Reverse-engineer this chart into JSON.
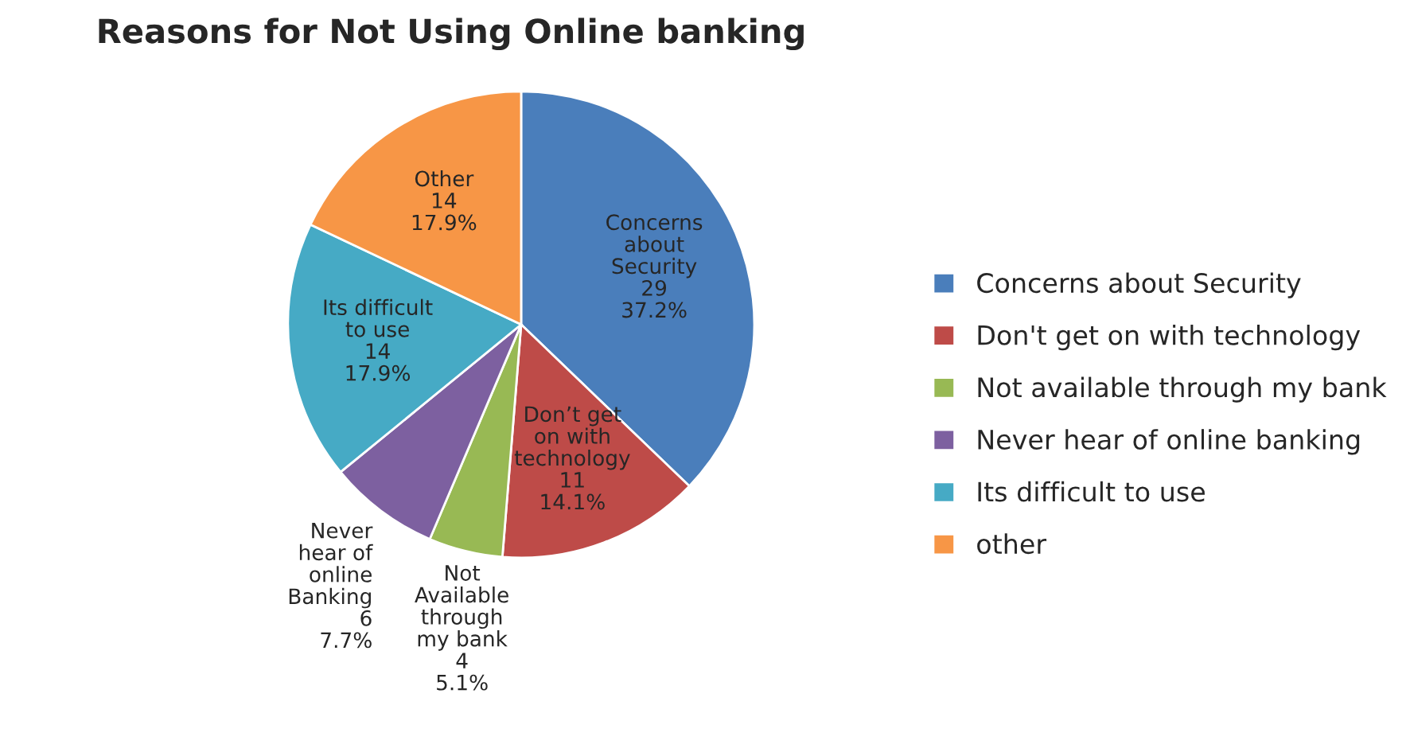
{
  "chart_data": {
    "type": "pie",
    "title": "Reasons for Not Using Online banking",
    "categories": [
      "Concerns about Security",
      "Don't get on with technology",
      "Not available through my bank",
      "Never hear of online banking",
      "Its difficult to use",
      "other"
    ],
    "values": [
      29,
      11,
      4,
      6,
      14,
      14
    ],
    "colors": [
      "#4a7ebb",
      "#be4b48",
      "#98b954",
      "#7d60a0",
      "#46aac5",
      "#f79646"
    ],
    "value_labels": [
      "Concerns\nabout\nSecurity\n29\n37.2%",
      "Don’t get\non with\ntechnology\n11\n14.1%",
      "Not\nAvailable\nthrough\nmy bank\n4\n5.1%",
      "Never\nhear of\nonline\nBanking\n6\n7.7%",
      "Its difficult\nto use\n14\n17.9%",
      "Other\n14\n17.9%"
    ],
    "legend": "right"
  }
}
